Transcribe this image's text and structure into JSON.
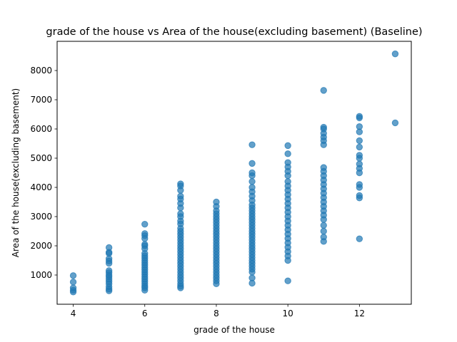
{
  "chart_data": {
    "type": "scatter",
    "title": "grade of the house vs Area of the house(excluding basement) (Baseline)",
    "xlabel": "grade of the house",
    "ylabel": "Area of the house(excluding basement)",
    "xlim": [
      3.55,
      13.45
    ],
    "ylim": [
      0,
      9000
    ],
    "xticks": [
      4,
      6,
      8,
      10,
      12
    ],
    "yticks": [
      1000,
      2000,
      3000,
      4000,
      5000,
      6000,
      7000,
      8000
    ],
    "grid": false,
    "color": "#1f77b4",
    "point_alpha": 0.7,
    "points": [
      [
        4,
        420
      ],
      [
        4,
        480
      ],
      [
        4,
        560
      ],
      [
        4,
        760
      ],
      [
        4,
        980
      ],
      [
        5,
        460
      ],
      [
        5,
        520
      ],
      [
        5,
        600
      ],
      [
        5,
        700
      ],
      [
        5,
        780
      ],
      [
        5,
        860
      ],
      [
        5,
        940
      ],
      [
        5,
        1000
      ],
      [
        5,
        1080
      ],
      [
        5,
        1150
      ],
      [
        5,
        1400
      ],
      [
        5,
        1480
      ],
      [
        5,
        1560
      ],
      [
        5,
        1740
      ],
      [
        5,
        1780
      ],
      [
        5,
        1940
      ],
      [
        6,
        480
      ],
      [
        6,
        560
      ],
      [
        6,
        620
      ],
      [
        6,
        700
      ],
      [
        6,
        780
      ],
      [
        6,
        860
      ],
      [
        6,
        940
      ],
      [
        6,
        1020
      ],
      [
        6,
        1100
      ],
      [
        6,
        1180
      ],
      [
        6,
        1260
      ],
      [
        6,
        1340
      ],
      [
        6,
        1420
      ],
      [
        6,
        1500
      ],
      [
        6,
        1580
      ],
      [
        6,
        1660
      ],
      [
        6,
        1740
      ],
      [
        6,
        1900
      ],
      [
        6,
        2000
      ],
      [
        6,
        2050
      ],
      [
        6,
        2250
      ],
      [
        6,
        2350
      ],
      [
        6,
        2420
      ],
      [
        6,
        2740
      ],
      [
        7,
        560
      ],
      [
        7,
        620
      ],
      [
        7,
        700
      ],
      [
        7,
        800
      ],
      [
        7,
        900
      ],
      [
        7,
        1000
      ],
      [
        7,
        1100
      ],
      [
        7,
        1200
      ],
      [
        7,
        1300
      ],
      [
        7,
        1400
      ],
      [
        7,
        1500
      ],
      [
        7,
        1600
      ],
      [
        7,
        1700
      ],
      [
        7,
        1800
      ],
      [
        7,
        1900
      ],
      [
        7,
        2000
      ],
      [
        7,
        2100
      ],
      [
        7,
        2200
      ],
      [
        7,
        2300
      ],
      [
        7,
        2400
      ],
      [
        7,
        2500
      ],
      [
        7,
        2600
      ],
      [
        7,
        2750
      ],
      [
        7,
        2850
      ],
      [
        7,
        3000
      ],
      [
        7,
        3100
      ],
      [
        7,
        3300
      ],
      [
        7,
        3450
      ],
      [
        7,
        3600
      ],
      [
        7,
        3700
      ],
      [
        7,
        3900
      ],
      [
        7,
        4050
      ],
      [
        7,
        4120
      ],
      [
        8,
        700
      ],
      [
        8,
        800
      ],
      [
        8,
        900
      ],
      [
        8,
        1000
      ],
      [
        8,
        1100
      ],
      [
        8,
        1200
      ],
      [
        8,
        1300
      ],
      [
        8,
        1400
      ],
      [
        8,
        1500
      ],
      [
        8,
        1600
      ],
      [
        8,
        1700
      ],
      [
        8,
        1800
      ],
      [
        8,
        1900
      ],
      [
        8,
        2000
      ],
      [
        8,
        2100
      ],
      [
        8,
        2200
      ],
      [
        8,
        2300
      ],
      [
        8,
        2400
      ],
      [
        8,
        2500
      ],
      [
        8,
        2600
      ],
      [
        8,
        2700
      ],
      [
        8,
        2800
      ],
      [
        8,
        2900
      ],
      [
        8,
        3000
      ],
      [
        8,
        3100
      ],
      [
        8,
        3200
      ],
      [
        8,
        3350
      ],
      [
        8,
        3500
      ],
      [
        9,
        720
      ],
      [
        9,
        900
      ],
      [
        9,
        1100
      ],
      [
        9,
        1200
      ],
      [
        9,
        1300
      ],
      [
        9,
        1400
      ],
      [
        9,
        1500
      ],
      [
        9,
        1600
      ],
      [
        9,
        1700
      ],
      [
        9,
        1800
      ],
      [
        9,
        1900
      ],
      [
        9,
        2000
      ],
      [
        9,
        2100
      ],
      [
        9,
        2200
      ],
      [
        9,
        2300
      ],
      [
        9,
        2400
      ],
      [
        9,
        2500
      ],
      [
        9,
        2600
      ],
      [
        9,
        2700
      ],
      [
        9,
        2800
      ],
      [
        9,
        2900
      ],
      [
        9,
        3000
      ],
      [
        9,
        3100
      ],
      [
        9,
        3200
      ],
      [
        9,
        3300
      ],
      [
        9,
        3400
      ],
      [
        9,
        3550
      ],
      [
        9,
        3700
      ],
      [
        9,
        3850
      ],
      [
        9,
        4000
      ],
      [
        9,
        4200
      ],
      [
        9,
        4400
      ],
      [
        9,
        4500
      ],
      [
        9,
        4820
      ],
      [
        9,
        5460
      ],
      [
        10,
        800
      ],
      [
        10,
        1500
      ],
      [
        10,
        1650
      ],
      [
        10,
        1800
      ],
      [
        10,
        1950
      ],
      [
        10,
        2100
      ],
      [
        10,
        2250
      ],
      [
        10,
        2400
      ],
      [
        10,
        2550
      ],
      [
        10,
        2700
      ],
      [
        10,
        2850
      ],
      [
        10,
        3000
      ],
      [
        10,
        3150
      ],
      [
        10,
        3300
      ],
      [
        10,
        3450
      ],
      [
        10,
        3600
      ],
      [
        10,
        3750
      ],
      [
        10,
        3900
      ],
      [
        10,
        4050
      ],
      [
        10,
        4200
      ],
      [
        10,
        4400
      ],
      [
        10,
        4550
      ],
      [
        10,
        4700
      ],
      [
        10,
        4850
      ],
      [
        10,
        5150
      ],
      [
        10,
        5430
      ],
      [
        11,
        2150
      ],
      [
        11,
        2300
      ],
      [
        11,
        2500
      ],
      [
        11,
        2700
      ],
      [
        11,
        2900
      ],
      [
        11,
        3050
      ],
      [
        11,
        3200
      ],
      [
        11,
        3350
      ],
      [
        11,
        3500
      ],
      [
        11,
        3650
      ],
      [
        11,
        3800
      ],
      [
        11,
        3950
      ],
      [
        11,
        4100
      ],
      [
        11,
        4250
      ],
      [
        11,
        4400
      ],
      [
        11,
        4550
      ],
      [
        11,
        4680
      ],
      [
        11,
        5460
      ],
      [
        11,
        5600
      ],
      [
        11,
        5720
      ],
      [
        11,
        5850
      ],
      [
        11,
        6000
      ],
      [
        11,
        6060
      ],
      [
        11,
        7320
      ],
      [
        12,
        2240
      ],
      [
        12,
        3640
      ],
      [
        12,
        3720
      ],
      [
        12,
        4000
      ],
      [
        12,
        4100
      ],
      [
        12,
        4500
      ],
      [
        12,
        4650
      ],
      [
        12,
        4800
      ],
      [
        12,
        5000
      ],
      [
        12,
        5100
      ],
      [
        12,
        5380
      ],
      [
        12,
        5600
      ],
      [
        12,
        5900
      ],
      [
        12,
        6080
      ],
      [
        12,
        6380
      ],
      [
        12,
        6430
      ],
      [
        13,
        6210
      ],
      [
        13,
        8570
      ]
    ]
  }
}
